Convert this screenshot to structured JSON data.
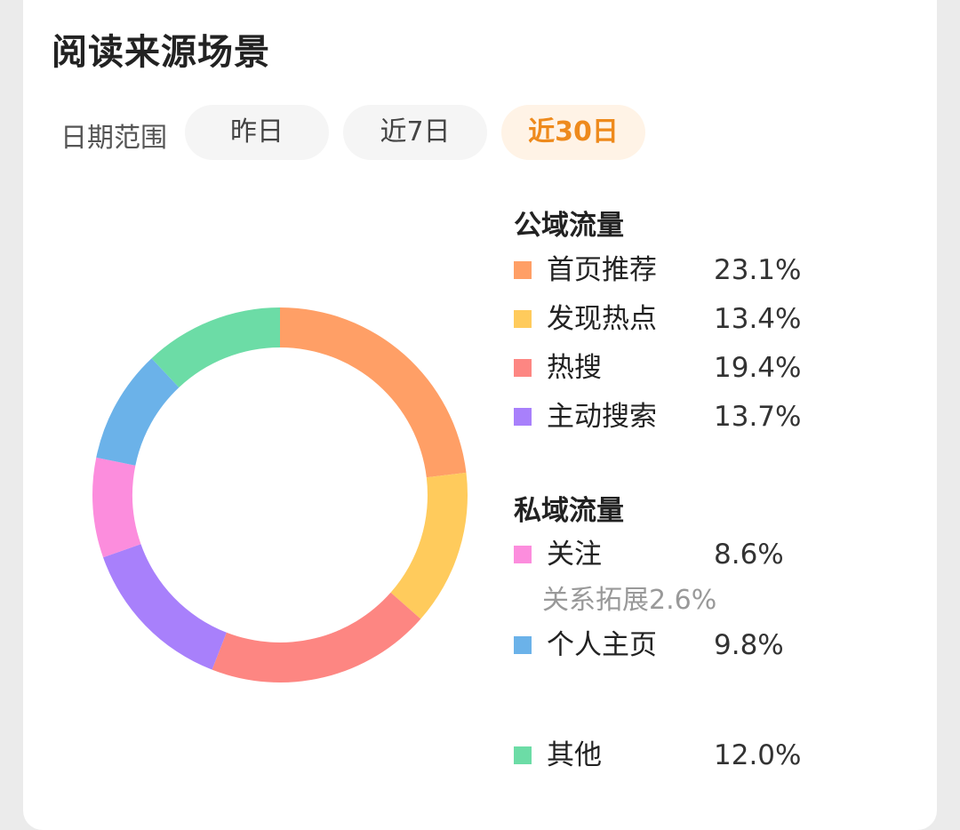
{
  "card": {
    "title": "阅读来源场景"
  },
  "filter": {
    "label": "日期范围",
    "options": [
      "昨日",
      "近7日",
      "近30日"
    ],
    "selected": "近30日"
  },
  "colors": {
    "accent": "#ee8a1c",
    "首页推荐": "#ff9f66",
    "发现热点": "#ffcb5c",
    "热搜": "#fd8682",
    "主动搜索": "#a880fb",
    "关注": "#fc8ddd",
    "个人主页": "#6bb2e9",
    "其他": "#6cdca6"
  },
  "legend": {
    "public_title": "公域流量",
    "public_items": [
      {
        "name": "首页推荐",
        "pct": "23.1%"
      },
      {
        "name": "发现热点",
        "pct": "13.4%"
      },
      {
        "name": "热搜",
        "pct": "19.4%"
      },
      {
        "name": "主动搜索",
        "pct": "13.7%"
      }
    ],
    "private_title": "私域流量",
    "private_items": [
      {
        "name": "关注",
        "pct": "8.6%"
      },
      {
        "name": "个人主页",
        "pct": "9.8%"
      }
    ],
    "sub_item": "关系拓展2.6%",
    "other_item": {
      "name": "其他",
      "pct": "12.0%"
    }
  },
  "chart_data": {
    "type": "pie",
    "style": "donut",
    "categories": [
      "首页推荐",
      "发现热点",
      "热搜",
      "主动搜索",
      "关注",
      "个人主页",
      "其他"
    ],
    "values": [
      23.1,
      13.4,
      19.4,
      13.7,
      8.6,
      9.8,
      12.0
    ],
    "unit": "%",
    "legend_position": "right"
  }
}
